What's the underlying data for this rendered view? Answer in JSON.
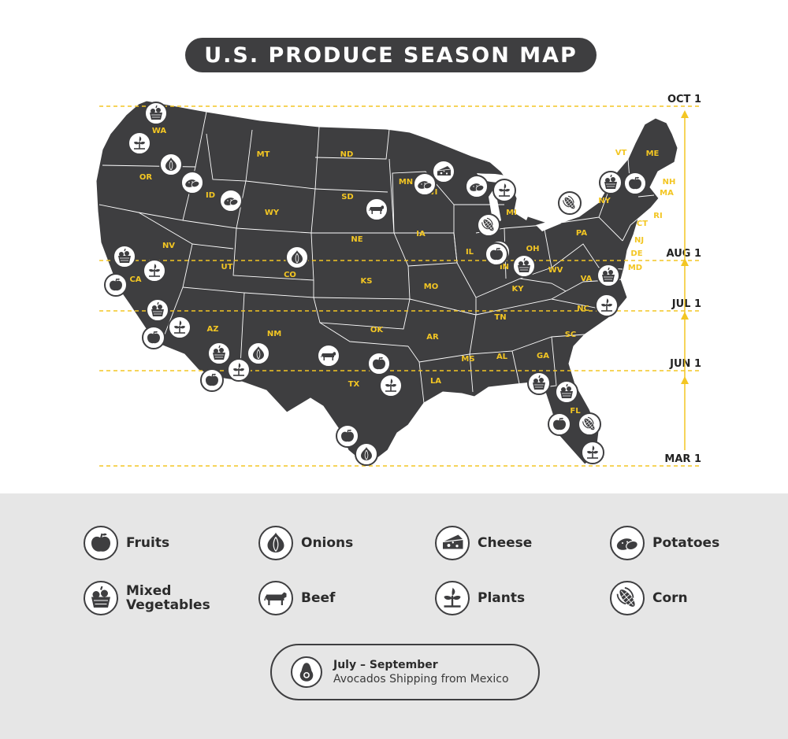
{
  "title": "U.S. PRODUCE SEASON MAP",
  "colors": {
    "map_fill": "#3e3e40",
    "accent_yellow": "#f3c623",
    "legend_bg": "#e6e6e6",
    "icon_border": "#3e3e40"
  },
  "season_lines": [
    {
      "label": "OCT 1"
    },
    {
      "label": "AUG 1"
    },
    {
      "label": "JUL 1"
    },
    {
      "label": "JUN 1"
    },
    {
      "label": "MAR 1"
    }
  ],
  "states": [
    "WA",
    "OR",
    "ID",
    "MT",
    "ND",
    "SD",
    "WY",
    "NV",
    "CA",
    "UT",
    "CO",
    "NE",
    "KS",
    "AZ",
    "NM",
    "OK",
    "TX",
    "MN",
    "WI",
    "IA",
    "IL",
    "MO",
    "AR",
    "LA",
    "MS",
    "AL",
    "TN",
    "KY",
    "MI",
    "OH",
    "IN",
    "WV",
    "VA",
    "NC",
    "SC",
    "GA",
    "FL",
    "PA",
    "NY",
    "VT",
    "ME",
    "NH",
    "MA",
    "RI",
    "CT",
    "NJ",
    "DE",
    "MD"
  ],
  "map_markers": [
    {
      "state": "WA",
      "icon": "mixed-vegetables-icon"
    },
    {
      "state": "WA",
      "icon": "plants-icon"
    },
    {
      "state": "OR",
      "icon": "onions-icon"
    },
    {
      "state": "OR",
      "icon": "potatoes-icon"
    },
    {
      "state": "ID",
      "icon": "potatoes-icon"
    },
    {
      "state": "SD",
      "icon": "beef-icon"
    },
    {
      "state": "CO",
      "icon": "onions-icon"
    },
    {
      "state": "CA",
      "icon": "mixed-vegetables-icon"
    },
    {
      "state": "CA",
      "icon": "plants-icon"
    },
    {
      "state": "CA",
      "icon": "fruits-icon"
    },
    {
      "state": "CA",
      "icon": "mixed-vegetables-icon"
    },
    {
      "state": "CA",
      "icon": "plants-icon"
    },
    {
      "state": "CA",
      "icon": "fruits-icon"
    },
    {
      "state": "AZ",
      "icon": "mixed-vegetables-icon"
    },
    {
      "state": "AZ",
      "icon": "plants-icon"
    },
    {
      "state": "AZ",
      "icon": "fruits-icon"
    },
    {
      "state": "NM",
      "icon": "onions-icon"
    },
    {
      "state": "TX",
      "icon": "beef-icon"
    },
    {
      "state": "TX",
      "icon": "fruits-icon"
    },
    {
      "state": "TX",
      "icon": "plants-icon"
    },
    {
      "state": "TX",
      "icon": "fruits-icon"
    },
    {
      "state": "TX",
      "icon": "onions-icon"
    },
    {
      "state": "MN",
      "icon": "potatoes-icon"
    },
    {
      "state": "WI",
      "icon": "cheese-icon"
    },
    {
      "state": "WI",
      "icon": "potatoes-icon"
    },
    {
      "state": "MI",
      "icon": "plants-icon"
    },
    {
      "state": "MI",
      "icon": "corn-icon"
    },
    {
      "state": "IN",
      "icon": "mixed-vegetables-icon"
    },
    {
      "state": "OH",
      "icon": "fruits-icon"
    },
    {
      "state": "OH",
      "icon": "mixed-vegetables-icon"
    },
    {
      "state": "NY",
      "icon": "corn-icon"
    },
    {
      "state": "NY",
      "icon": "mixed-vegetables-icon"
    },
    {
      "state": "ME",
      "icon": "fruits-icon"
    },
    {
      "state": "VA",
      "icon": "mixed-vegetables-icon"
    },
    {
      "state": "NC",
      "icon": "plants-icon"
    },
    {
      "state": "GA",
      "icon": "mixed-vegetables-icon"
    },
    {
      "state": "FL",
      "icon": "mixed-vegetables-icon"
    },
    {
      "state": "FL",
      "icon": "fruits-icon"
    },
    {
      "state": "FL",
      "icon": "corn-icon"
    },
    {
      "state": "FL",
      "icon": "plants-icon"
    }
  ],
  "legend": [
    {
      "label": "Fruits",
      "icon": "fruits-icon"
    },
    {
      "label": "Onions",
      "icon": "onions-icon"
    },
    {
      "label": "Cheese",
      "icon": "cheese-icon"
    },
    {
      "label": "Potatoes",
      "icon": "potatoes-icon"
    },
    {
      "label": "Mixed Vegetables",
      "icon": "mixed-vegetables-icon"
    },
    {
      "label": "Beef",
      "icon": "beef-icon"
    },
    {
      "label": "Plants",
      "icon": "plants-icon"
    },
    {
      "label": "Corn",
      "icon": "corn-icon"
    }
  ],
  "avocado_note": {
    "period": "July – September",
    "text": "Avocados Shipping from Mexico",
    "icon": "avocado-icon"
  }
}
